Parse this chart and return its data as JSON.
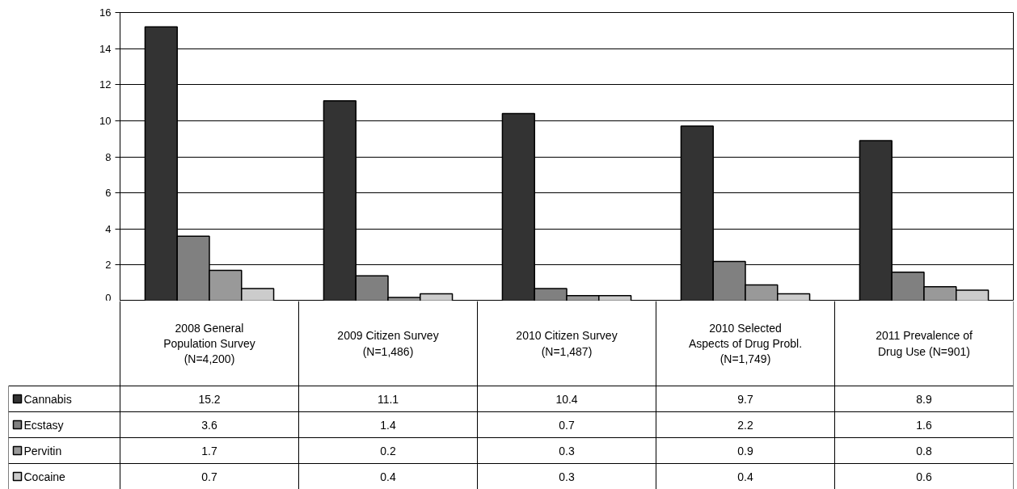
{
  "chart_data": {
    "type": "bar",
    "categories": [
      "2008 General\nPopulation Survey\n(N=4,200)",
      "2009 Citizen Survey\n(N=1,486)",
      "2010 Citizen Survey\n(N=1,487)",
      "2010 Selected\nAspects of Drug Probl.\n(N=1,749)",
      "2011 Prevalence of\nDrug Use (N=901)"
    ],
    "series": [
      {
        "name": "Cannabis",
        "color": "#333333",
        "values": [
          15.2,
          11.1,
          10.4,
          9.7,
          8.9
        ]
      },
      {
        "name": "Ecstasy",
        "color": "#808080",
        "values": [
          3.6,
          1.4,
          0.7,
          2.2,
          1.6
        ]
      },
      {
        "name": "Pervitin",
        "color": "#999999",
        "values": [
          1.7,
          0.2,
          0.3,
          0.9,
          0.8
        ]
      },
      {
        "name": "Cocaine",
        "color": "#cccccc",
        "values": [
          0.7,
          0.4,
          0.3,
          0.4,
          0.6
        ]
      }
    ],
    "ylim": [
      0,
      16
    ],
    "yticks": [
      0,
      2,
      4,
      6,
      8,
      10,
      12,
      14,
      16
    ],
    "grid": "y",
    "legend": "bottom left",
    "data_labels": true
  }
}
